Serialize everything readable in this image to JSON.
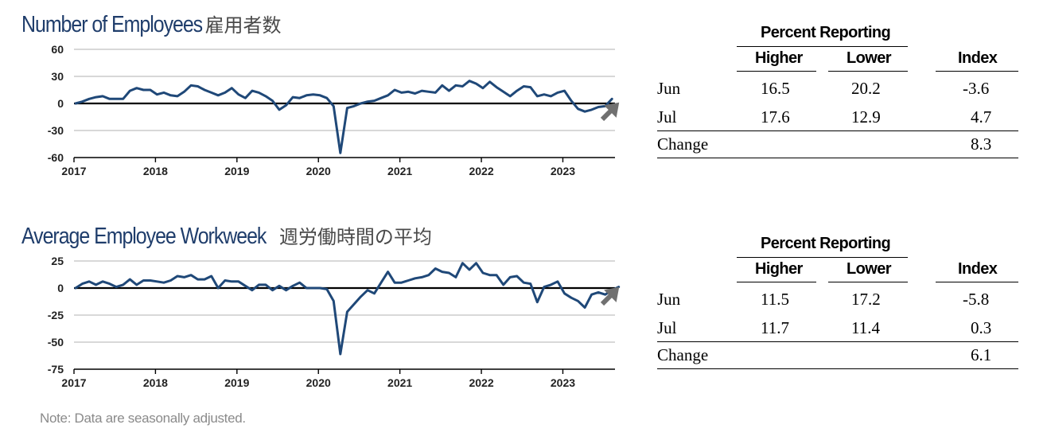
{
  "panels": [
    {
      "title_en": "Number of Employees",
      "title_jp": "雇用者数",
      "chart_data": {
        "type": "line",
        "x_tick_labels": [
          "2017",
          "2018",
          "2019",
          "2020",
          "2021",
          "2022",
          "2023"
        ],
        "y_tick_labels": [
          "60",
          "30",
          "0",
          "-30",
          "-60"
        ],
        "ylim": [
          -60,
          60
        ],
        "grid": "horizontal",
        "series": [
          {
            "color": "#1f4878",
            "values": [
              0,
              2,
              5,
              7,
              8,
              5,
              5,
              5,
              14,
              17,
              15,
              15,
              10,
              12,
              9,
              8,
              13,
              20,
              19,
              15,
              12,
              9,
              12,
              17,
              10,
              6,
              14,
              12,
              8,
              3,
              -7,
              -2,
              7,
              6,
              9,
              10,
              9,
              6,
              -3,
              -55,
              -5,
              -3,
              0,
              2,
              3,
              6,
              9,
              15,
              12,
              13,
              11,
              14,
              13,
              12,
              20,
              14,
              20,
              19,
              25,
              22,
              17,
              24,
              18,
              13,
              8,
              14,
              19,
              18,
              8,
              10,
              8,
              12,
              14,
              3,
              -6,
              -9,
              -7,
              -4,
              -3,
              5
            ]
          }
        ],
        "arrow_direction": "up"
      },
      "table": {
        "group_header": "Percent Reporting",
        "col_higher": "Higher",
        "col_lower": "Lower",
        "col_index": "Index",
        "rows": [
          {
            "label": "Jun",
            "higher": "16.5",
            "lower": "20.2",
            "index": "-3.6"
          },
          {
            "label": "Jul",
            "higher": "17.6",
            "lower": "12.9",
            "index": "4.7"
          }
        ],
        "change_label": "Change",
        "change_value": "8.3"
      }
    },
    {
      "title_en": "Average Employee Workweek",
      "title_jp": "週労働時間の平均",
      "chart_data": {
        "type": "line",
        "x_tick_labels": [
          "2017",
          "2018",
          "2019",
          "2020",
          "2021",
          "2022",
          "2023"
        ],
        "y_tick_labels": [
          "25",
          "0",
          "-25",
          "-50",
          "-75"
        ],
        "ylim": [
          -75,
          25
        ],
        "grid": "horizontal",
        "series": [
          {
            "color": "#1f4878",
            "values": [
              0,
              4,
              6,
              3,
              6,
              4,
              1,
              3,
              8,
              3,
              7,
              7,
              6,
              5,
              7,
              11,
              10,
              12,
              8,
              8,
              11,
              0,
              7,
              6,
              6,
              2,
              -2,
              3,
              3,
              -2,
              2,
              -2,
              2,
              5,
              0,
              0,
              0,
              -1,
              -12,
              -61,
              -22,
              -15,
              -8,
              -2,
              -5,
              5,
              15,
              5,
              5,
              7,
              9,
              10,
              12,
              18,
              15,
              14,
              10,
              23,
              17,
              23,
              14,
              12,
              12,
              3,
              10,
              11,
              5,
              4,
              -13,
              1,
              3,
              6,
              -5,
              -9,
              -12,
              -18,
              -6,
              -4,
              -6,
              -2,
              1
            ]
          }
        ],
        "arrow_direction": "up"
      },
      "table": {
        "group_header": "Percent Reporting",
        "col_higher": "Higher",
        "col_lower": "Lower",
        "col_index": "Index",
        "rows": [
          {
            "label": "Jun",
            "higher": "11.5",
            "lower": "17.2",
            "index": "-5.8"
          },
          {
            "label": "Jul",
            "higher": "11.7",
            "lower": "11.4",
            "index": "0.3"
          }
        ],
        "change_label": "Change",
        "change_value": "6.1"
      }
    }
  ],
  "note": "Note: Data are seasonally adjusted.",
  "colors": {
    "title": "#1f3d6b",
    "line": "#1f4878",
    "arrow": "#707070",
    "grid": "#b0b0b0"
  }
}
